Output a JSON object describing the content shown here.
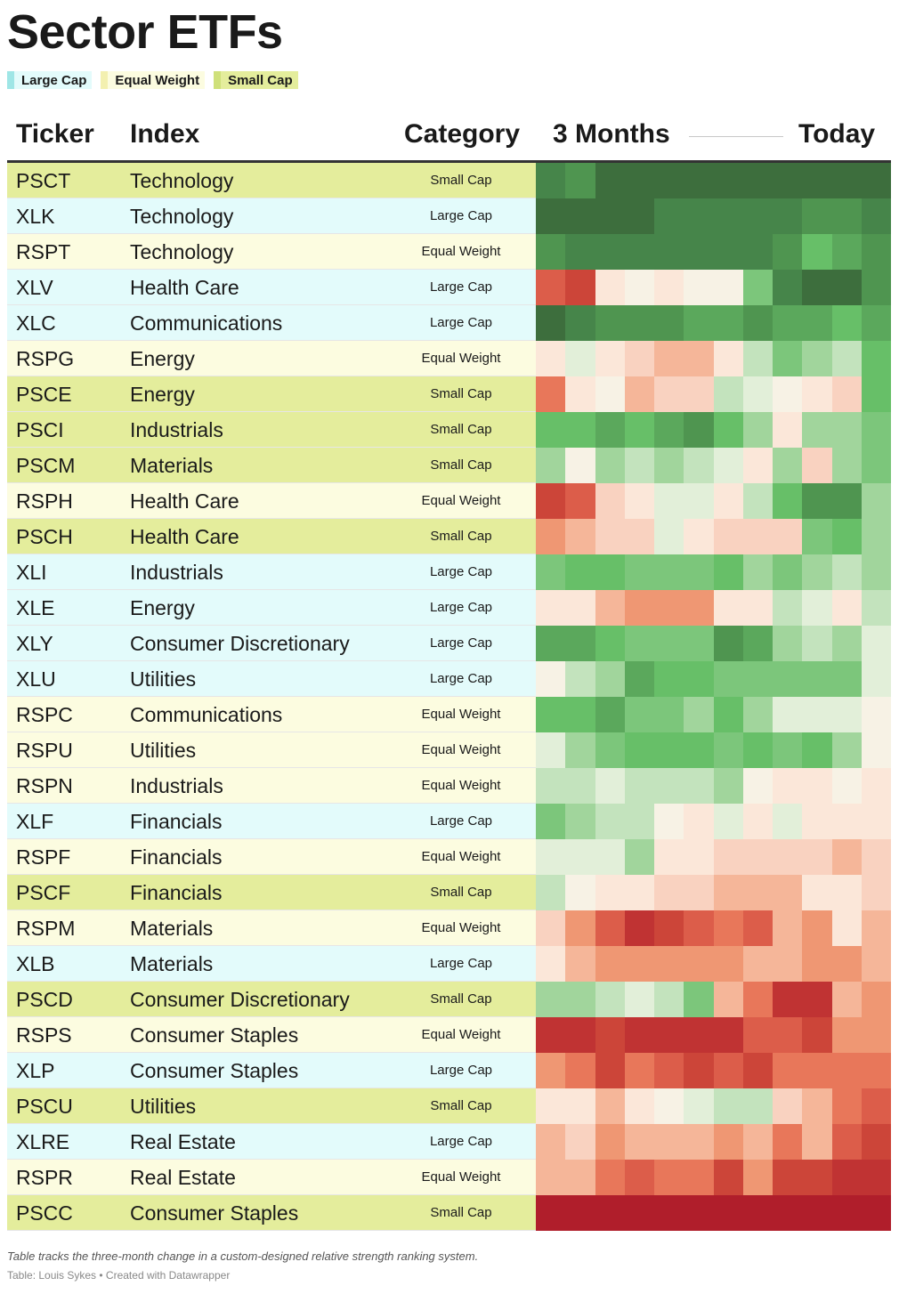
{
  "title": "Sector ETFs",
  "legend": [
    {
      "label": "Large Cap",
      "color": "#e3fbfb",
      "swatch": "#9fe6e6"
    },
    {
      "label": "Equal Weight",
      "color": "#fcfce0",
      "swatch": "#f3f0b0"
    },
    {
      "label": "Small Cap",
      "color": "#e4ed9c",
      "swatch": "#cfe07a"
    }
  ],
  "headers": {
    "ticker": "Ticker",
    "index": "Index",
    "category": "Category",
    "start": "3 Months",
    "end": "Today"
  },
  "category_colors": {
    "Large Cap": "#e3fbfb",
    "Equal Weight": "#fcfce0",
    "Small Cap": "#e4ed9c"
  },
  "palette": {
    "G9": "#3d6e3d",
    "G8": "#46854a",
    "G7": "#4f9550",
    "G6": "#5ba85c",
    "G5": "#67bf68",
    "G4": "#7cc67b",
    "G3": "#a1d59c",
    "G2": "#c3e3bd",
    "G1": "#e2efd9",
    "N0": "#f7f2e5",
    "R1": "#fbe7d9",
    "R2": "#f9d2c0",
    "R3": "#f5b699",
    "R4": "#ef9773",
    "R5": "#e8775a",
    "R6": "#dc5d4a",
    "R7": "#cc4539",
    "R8": "#c03333",
    "R9": "#b01e2b"
  },
  "chart_data": {
    "type": "heatmap",
    "title": "Sector ETFs",
    "columns_label_start": "3 Months",
    "columns_label_end": "Today",
    "scale_note": "color: green = higher relative strength rank, red = lower",
    "rows": [
      {
        "ticker": "PSCT",
        "index": "Technology",
        "category": "Small Cap",
        "cells": [
          "G8",
          "G7",
          "G9",
          "G9",
          "G9",
          "G9",
          "G9",
          "G9",
          "G9",
          "G9",
          "G9",
          "G9"
        ]
      },
      {
        "ticker": "XLK",
        "index": "Technology",
        "category": "Large Cap",
        "cells": [
          "G9",
          "G9",
          "G9",
          "G9",
          "G8",
          "G8",
          "G8",
          "G8",
          "G8",
          "G7",
          "G7",
          "G8"
        ]
      },
      {
        "ticker": "RSPT",
        "index": "Technology",
        "category": "Equal Weight",
        "cells": [
          "G7",
          "G8",
          "G8",
          "G8",
          "G8",
          "G8",
          "G8",
          "G8",
          "G7",
          "G5",
          "G6",
          "G7"
        ]
      },
      {
        "ticker": "XLV",
        "index": "Health Care",
        "category": "Large Cap",
        "cells": [
          "R6",
          "R7",
          "R1",
          "N0",
          "R1",
          "N0",
          "N0",
          "G4",
          "G8",
          "G9",
          "G9",
          "G7"
        ]
      },
      {
        "ticker": "XLC",
        "index": "Communications",
        "category": "Large Cap",
        "cells": [
          "G9",
          "G8",
          "G7",
          "G7",
          "G7",
          "G6",
          "G6",
          "G7",
          "G6",
          "G6",
          "G5",
          "G6"
        ]
      },
      {
        "ticker": "RSPG",
        "index": "Energy",
        "category": "Equal Weight",
        "cells": [
          "R1",
          "G1",
          "R1",
          "R2",
          "R3",
          "R3",
          "R1",
          "G2",
          "G4",
          "G3",
          "G2",
          "G5"
        ]
      },
      {
        "ticker": "PSCE",
        "index": "Energy",
        "category": "Small Cap",
        "cells": [
          "R5",
          "R1",
          "N0",
          "R3",
          "R2",
          "R2",
          "G2",
          "G1",
          "N0",
          "R1",
          "R2",
          "G5"
        ]
      },
      {
        "ticker": "PSCI",
        "index": "Industrials",
        "category": "Small Cap",
        "cells": [
          "G5",
          "G5",
          "G6",
          "G5",
          "G6",
          "G7",
          "G5",
          "G3",
          "R1",
          "G3",
          "G3",
          "G4"
        ]
      },
      {
        "ticker": "PSCM",
        "index": "Materials",
        "category": "Small Cap",
        "cells": [
          "G3",
          "N0",
          "G3",
          "G2",
          "G3",
          "G2",
          "G1",
          "R1",
          "G3",
          "R2",
          "G3",
          "G4"
        ]
      },
      {
        "ticker": "RSPH",
        "index": "Health Care",
        "category": "Equal Weight",
        "cells": [
          "R7",
          "R6",
          "R2",
          "R1",
          "G1",
          "G1",
          "R1",
          "G2",
          "G5",
          "G7",
          "G7",
          "G3"
        ]
      },
      {
        "ticker": "PSCH",
        "index": "Health Care",
        "category": "Small Cap",
        "cells": [
          "R4",
          "R3",
          "R2",
          "R2",
          "G1",
          "R1",
          "R2",
          "R2",
          "R2",
          "G4",
          "G5",
          "G3"
        ]
      },
      {
        "ticker": "XLI",
        "index": "Industrials",
        "category": "Large Cap",
        "cells": [
          "G4",
          "G5",
          "G5",
          "G4",
          "G4",
          "G4",
          "G5",
          "G3",
          "G4",
          "G3",
          "G2",
          "G3"
        ]
      },
      {
        "ticker": "XLE",
        "index": "Energy",
        "category": "Large Cap",
        "cells": [
          "R1",
          "R1",
          "R3",
          "R4",
          "R4",
          "R4",
          "R1",
          "R1",
          "G2",
          "G1",
          "R1",
          "G2"
        ]
      },
      {
        "ticker": "XLY",
        "index": "Consumer Discretionary",
        "category": "Large Cap",
        "cells": [
          "G6",
          "G6",
          "G5",
          "G4",
          "G4",
          "G4",
          "G7",
          "G6",
          "G3",
          "G2",
          "G3",
          "G1"
        ]
      },
      {
        "ticker": "XLU",
        "index": "Utilities",
        "category": "Large Cap",
        "cells": [
          "N0",
          "G2",
          "G3",
          "G6",
          "G5",
          "G5",
          "G4",
          "G4",
          "G4",
          "G4",
          "G4",
          "G1"
        ]
      },
      {
        "ticker": "RSPC",
        "index": "Communications",
        "category": "Equal Weight",
        "cells": [
          "G5",
          "G5",
          "G6",
          "G4",
          "G4",
          "G3",
          "G5",
          "G3",
          "G1",
          "G1",
          "G1",
          "N0"
        ]
      },
      {
        "ticker": "RSPU",
        "index": "Utilities",
        "category": "Equal Weight",
        "cells": [
          "G1",
          "G3",
          "G4",
          "G5",
          "G5",
          "G5",
          "G4",
          "G5",
          "G4",
          "G5",
          "G3",
          "N0"
        ]
      },
      {
        "ticker": "RSPN",
        "index": "Industrials",
        "category": "Equal Weight",
        "cells": [
          "G2",
          "G2",
          "G1",
          "G2",
          "G2",
          "G2",
          "G3",
          "N0",
          "R1",
          "R1",
          "N0",
          "R1"
        ]
      },
      {
        "ticker": "XLF",
        "index": "Financials",
        "category": "Large Cap",
        "cells": [
          "G4",
          "G3",
          "G2",
          "G2",
          "N0",
          "R1",
          "G1",
          "R1",
          "G1",
          "R1",
          "R1",
          "R1"
        ]
      },
      {
        "ticker": "RSPF",
        "index": "Financials",
        "category": "Equal Weight",
        "cells": [
          "G1",
          "G1",
          "G1",
          "G3",
          "R1",
          "R1",
          "R2",
          "R2",
          "R2",
          "R2",
          "R3",
          "R2"
        ]
      },
      {
        "ticker": "PSCF",
        "index": "Financials",
        "category": "Small Cap",
        "cells": [
          "G2",
          "N0",
          "R1",
          "R1",
          "R2",
          "R2",
          "R3",
          "R3",
          "R3",
          "R1",
          "R1",
          "R2"
        ]
      },
      {
        "ticker": "RSPM",
        "index": "Materials",
        "category": "Equal Weight",
        "cells": [
          "R2",
          "R4",
          "R6",
          "R8",
          "R7",
          "R6",
          "R5",
          "R6",
          "R3",
          "R4",
          "R1",
          "R3"
        ]
      },
      {
        "ticker": "XLB",
        "index": "Materials",
        "category": "Large Cap",
        "cells": [
          "R1",
          "R3",
          "R4",
          "R4",
          "R4",
          "R4",
          "R4",
          "R3",
          "R3",
          "R4",
          "R4",
          "R3"
        ]
      },
      {
        "ticker": "PSCD",
        "index": "Consumer Discretionary",
        "category": "Small Cap",
        "cells": [
          "G3",
          "G3",
          "G2",
          "G1",
          "G2",
          "G4",
          "R3",
          "R5",
          "R8",
          "R8",
          "R3",
          "R4"
        ]
      },
      {
        "ticker": "RSPS",
        "index": "Consumer Staples",
        "category": "Equal Weight",
        "cells": [
          "R8",
          "R8",
          "R7",
          "R8",
          "R8",
          "R8",
          "R8",
          "R6",
          "R6",
          "R7",
          "R4",
          "R4"
        ]
      },
      {
        "ticker": "XLP",
        "index": "Consumer Staples",
        "category": "Large Cap",
        "cells": [
          "R4",
          "R5",
          "R7",
          "R5",
          "R6",
          "R7",
          "R6",
          "R7",
          "R5",
          "R5",
          "R5",
          "R5"
        ]
      },
      {
        "ticker": "PSCU",
        "index": "Utilities",
        "category": "Small Cap",
        "cells": [
          "R1",
          "R1",
          "R3",
          "R1",
          "N0",
          "G1",
          "G2",
          "G2",
          "R2",
          "R3",
          "R5",
          "R6"
        ]
      },
      {
        "ticker": "XLRE",
        "index": "Real Estate",
        "category": "Large Cap",
        "cells": [
          "R3",
          "R2",
          "R4",
          "R3",
          "R3",
          "R3",
          "R4",
          "R3",
          "R5",
          "R3",
          "R6",
          "R7"
        ]
      },
      {
        "ticker": "RSPR",
        "index": "Real Estate",
        "category": "Equal Weight",
        "cells": [
          "R3",
          "R3",
          "R5",
          "R6",
          "R5",
          "R5",
          "R7",
          "R4",
          "R7",
          "R7",
          "R8",
          "R8"
        ]
      },
      {
        "ticker": "PSCC",
        "index": "Consumer Staples",
        "category": "Small Cap",
        "cells": [
          "R9",
          "R9",
          "R9",
          "R9",
          "R9",
          "R9",
          "R9",
          "R9",
          "R9",
          "R9",
          "R9",
          "R9"
        ]
      }
    ]
  },
  "footnote": "Table tracks the three-month change in a custom-designed relative strength ranking system.",
  "credit": "Table: Louis Sykes • Created with Datawrapper"
}
